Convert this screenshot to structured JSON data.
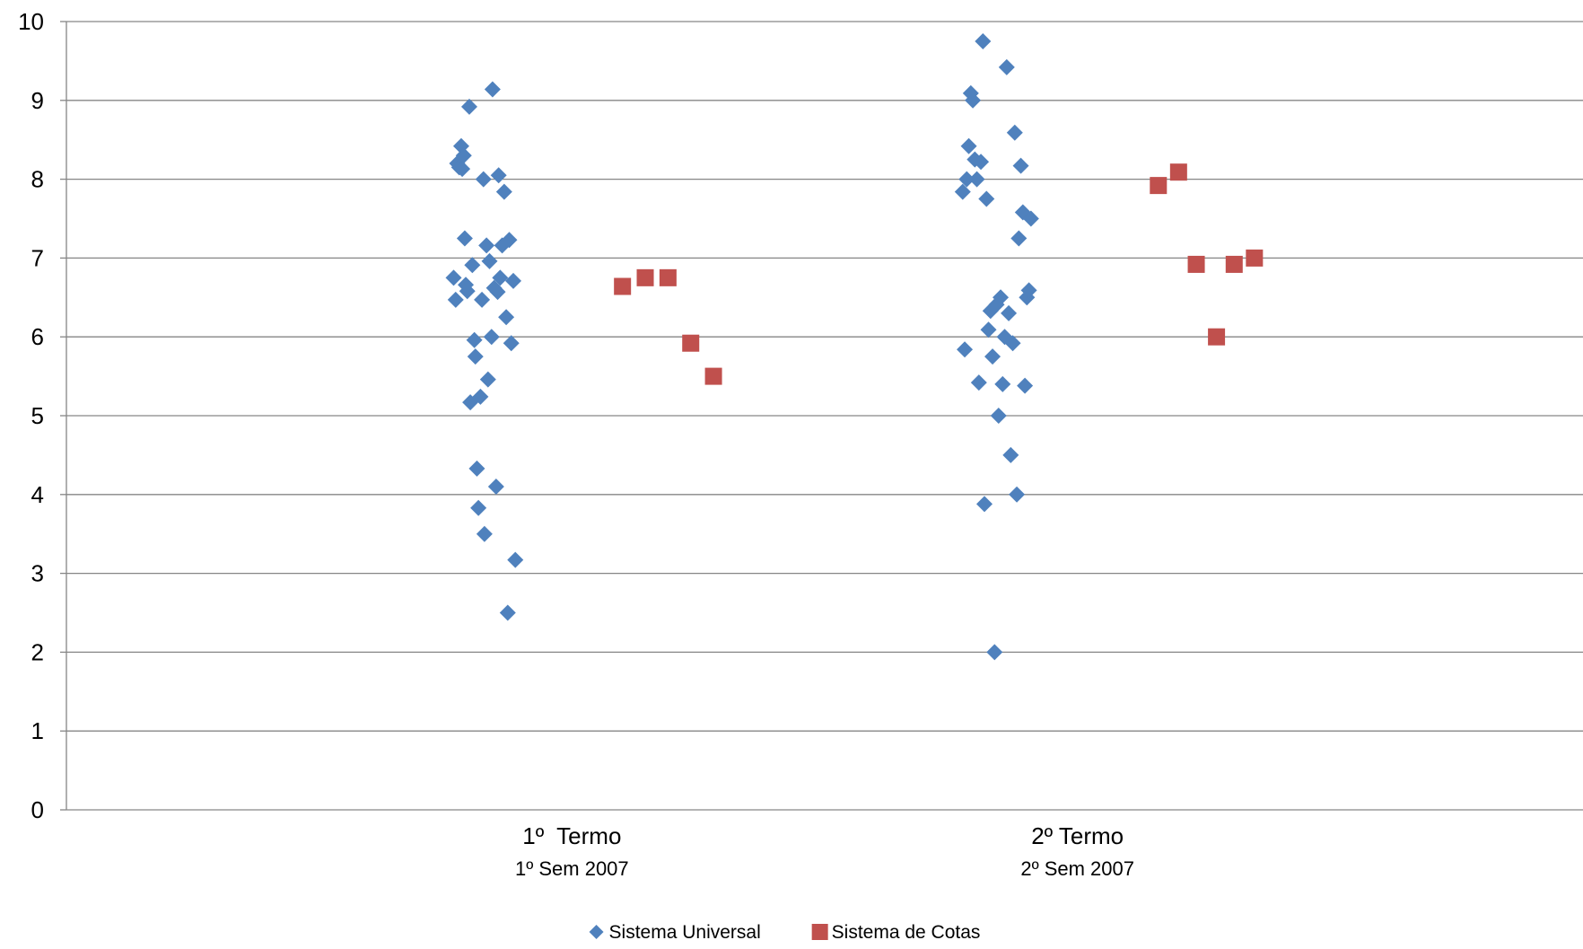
{
  "chart_data": {
    "type": "scatter",
    "ylim": [
      0,
      10
    ],
    "yticks": [
      0,
      1,
      2,
      3,
      4,
      5,
      6,
      7,
      8,
      9,
      10
    ],
    "grid": true,
    "legend_position": "bottom",
    "categories": [
      {
        "label": "1º  Termo",
        "sublabel": "1º Sem 2007"
      },
      {
        "label": "2º Termo",
        "sublabel": "2º Sem 2007"
      }
    ],
    "series": [
      {
        "name": "Sistema Universal",
        "marker": "diamond",
        "color": "#4F81BD",
        "points": [
          {
            "x": 0.766,
            "y": 6.75
          },
          {
            "x": 0.77,
            "y": 6.47
          },
          {
            "x": 0.773,
            "y": 8.2
          },
          {
            "x": 0.777,
            "y": 8.15
          },
          {
            "x": 0.781,
            "y": 8.42
          },
          {
            "x": 0.783,
            "y": 8.13
          },
          {
            "x": 0.786,
            "y": 8.3
          },
          {
            "x": 0.788,
            "y": 7.25
          },
          {
            "x": 0.79,
            "y": 6.66
          },
          {
            "x": 0.793,
            "y": 6.58
          },
          {
            "x": 0.797,
            "y": 8.92
          },
          {
            "x": 0.799,
            "y": 5.17
          },
          {
            "x": 0.803,
            "y": 6.91
          },
          {
            "x": 0.807,
            "y": 5.96
          },
          {
            "x": 0.809,
            "y": 5.75
          },
          {
            "x": 0.812,
            "y": 4.33
          },
          {
            "x": 0.815,
            "y": 3.83
          },
          {
            "x": 0.819,
            "y": 5.24
          },
          {
            "x": 0.822,
            "y": 6.47
          },
          {
            "x": 0.825,
            "y": 8.0
          },
          {
            "x": 0.827,
            "y": 3.5
          },
          {
            "x": 0.831,
            "y": 7.16
          },
          {
            "x": 0.834,
            "y": 5.46
          },
          {
            "x": 0.837,
            "y": 6.96
          },
          {
            "x": 0.841,
            "y": 6.0
          },
          {
            "x": 0.843,
            "y": 9.14
          },
          {
            "x": 0.846,
            "y": 6.62
          },
          {
            "x": 0.85,
            "y": 4.1
          },
          {
            "x": 0.853,
            "y": 6.57
          },
          {
            "x": 0.855,
            "y": 8.05
          },
          {
            "x": 0.858,
            "y": 6.75
          },
          {
            "x": 0.862,
            "y": 7.16
          },
          {
            "x": 0.866,
            "y": 7.84
          },
          {
            "x": 0.87,
            "y": 6.25
          },
          {
            "x": 0.873,
            "y": 2.5
          },
          {
            "x": 0.876,
            "y": 7.23
          },
          {
            "x": 0.88,
            "y": 5.92
          },
          {
            "x": 0.884,
            "y": 6.71
          },
          {
            "x": 0.888,
            "y": 3.17
          },
          {
            "x": 1.773,
            "y": 7.84
          },
          {
            "x": 1.777,
            "y": 5.84
          },
          {
            "x": 1.781,
            "y": 8.0
          },
          {
            "x": 1.785,
            "y": 8.42
          },
          {
            "x": 1.789,
            "y": 9.09
          },
          {
            "x": 1.793,
            "y": 9.0
          },
          {
            "x": 1.797,
            "y": 8.25
          },
          {
            "x": 1.801,
            "y": 8.0
          },
          {
            "x": 1.805,
            "y": 5.42
          },
          {
            "x": 1.809,
            "y": 8.22
          },
          {
            "x": 1.813,
            "y": 9.75
          },
          {
            "x": 1.816,
            "y": 3.88
          },
          {
            "x": 1.82,
            "y": 7.75
          },
          {
            "x": 1.824,
            "y": 6.09
          },
          {
            "x": 1.828,
            "y": 6.33
          },
          {
            "x": 1.832,
            "y": 5.75
          },
          {
            "x": 1.836,
            "y": 2.0
          },
          {
            "x": 1.84,
            "y": 6.41
          },
          {
            "x": 1.844,
            "y": 5.0
          },
          {
            "x": 1.848,
            "y": 6.5
          },
          {
            "x": 1.852,
            "y": 5.4
          },
          {
            "x": 1.856,
            "y": 6.0
          },
          {
            "x": 1.86,
            "y": 9.42
          },
          {
            "x": 1.864,
            "y": 6.3
          },
          {
            "x": 1.868,
            "y": 4.5
          },
          {
            "x": 1.872,
            "y": 5.92
          },
          {
            "x": 1.876,
            "y": 8.59
          },
          {
            "x": 1.88,
            "y": 4.0
          },
          {
            "x": 1.884,
            "y": 7.25
          },
          {
            "x": 1.888,
            "y": 8.17
          },
          {
            "x": 1.892,
            "y": 7.58
          },
          {
            "x": 1.896,
            "y": 5.38
          },
          {
            "x": 1.9,
            "y": 6.5
          },
          {
            "x": 1.904,
            "y": 6.59
          },
          {
            "x": 1.908,
            "y": 7.5
          }
        ]
      },
      {
        "name": "Sistema de Cotas",
        "marker": "square",
        "color": "#C0504D",
        "points": [
          {
            "x": 1.1,
            "y": 6.64
          },
          {
            "x": 1.145,
            "y": 6.75
          },
          {
            "x": 1.19,
            "y": 6.75
          },
          {
            "x": 1.235,
            "y": 5.92
          },
          {
            "x": 1.28,
            "y": 5.5
          },
          {
            "x": 2.16,
            "y": 7.92
          },
          {
            "x": 2.2,
            "y": 8.09
          },
          {
            "x": 2.235,
            "y": 6.92
          },
          {
            "x": 2.275,
            "y": 6.0
          },
          {
            "x": 2.31,
            "y": 6.92
          },
          {
            "x": 2.35,
            "y": 7.0
          }
        ]
      }
    ]
  }
}
